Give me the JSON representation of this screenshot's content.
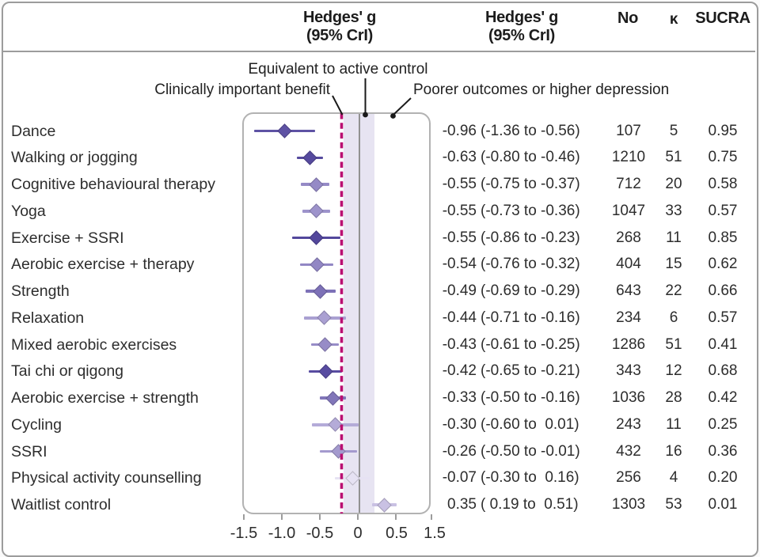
{
  "header": {
    "hedges_plot_line1": "Hedges' g",
    "hedges_plot_line2": "(95% CrI)",
    "hedges_text_line1": "Hedges' g",
    "hedges_text_line2": "(95% CrI)",
    "no_label": "No",
    "kappa_label": "κ",
    "sucra_label": "SUCRA"
  },
  "annotations": {
    "equivalent": "Equivalent to active control",
    "benefit": "Clinically important benefit",
    "poorer": "Poorer outcomes or higher depression"
  },
  "colors": {
    "dashed_line": "#b90e72",
    "equivalence_band": "#e7e4f2",
    "zero_line": "#919191",
    "frame": "#9c9c9c",
    "annotation_line": "#1a1a1a"
  },
  "chart_data": {
    "type": "forest",
    "xlabel": "Hedges' g (95% CrI)",
    "x_tick_values": [
      -1.5,
      -1.0,
      -0.5,
      0,
      0.5,
      1.5
    ],
    "x_tick_labels": [
      "-1.5",
      "-1.0",
      "-0.5",
      "0",
      "0.5",
      "1.5"
    ],
    "equivalence_band_range": [
      -0.2,
      0.2
    ],
    "clinical_benefit_threshold": -0.2,
    "grid": false,
    "rows": [
      {
        "label": "Dance",
        "g": -0.96,
        "lo": -1.36,
        "hi": -0.56,
        "est_text": "-0.96",
        "ci_text": "(-1.36 to -0.56)",
        "no": "107",
        "k": "5",
        "sucra": "0.95",
        "color": "#5e52a4"
      },
      {
        "label": "Walking or jogging",
        "g": -0.63,
        "lo": -0.8,
        "hi": -0.46,
        "est_text": "-0.63",
        "ci_text": "(-0.80 to -0.46)",
        "no": "1210",
        "k": "51",
        "sucra": "0.75",
        "color": "#564a9e"
      },
      {
        "label": "Cognitive behavioural therapy",
        "g": -0.55,
        "lo": -0.75,
        "hi": -0.37,
        "est_text": "-0.55",
        "ci_text": "(-0.75 to -0.37)",
        "no": "712",
        "k": "20",
        "sucra": "0.58",
        "color": "#958ac6"
      },
      {
        "label": "Yoga",
        "g": -0.55,
        "lo": -0.73,
        "hi": -0.36,
        "est_text": "-0.55",
        "ci_text": "(-0.73 to -0.36)",
        "no": "1047",
        "k": "33",
        "sucra": "0.57",
        "color": "#9d93cb"
      },
      {
        "label": "Exercise + SSRI",
        "g": -0.55,
        "lo": -0.86,
        "hi": -0.23,
        "est_text": "-0.55",
        "ci_text": "(-0.86 to -0.23)",
        "no": "268",
        "k": "11",
        "sucra": "0.85",
        "color": "#53479c"
      },
      {
        "label": "Aerobic exercise + therapy",
        "g": -0.54,
        "lo": -0.76,
        "hi": -0.32,
        "est_text": "-0.54",
        "ci_text": "(-0.76 to -0.32)",
        "no": "404",
        "k": "15",
        "sucra": "0.62",
        "color": "#9287c4"
      },
      {
        "label": "Strength",
        "g": -0.49,
        "lo": -0.69,
        "hi": -0.29,
        "est_text": "-0.49",
        "ci_text": "(-0.69 to -0.29)",
        "no": "643",
        "k": "22",
        "sucra": "0.66",
        "color": "#7d71b7"
      },
      {
        "label": "Relaxation",
        "g": -0.44,
        "lo": -0.71,
        "hi": -0.16,
        "est_text": "-0.44",
        "ci_text": "(-0.71 to -0.16)",
        "no": "234",
        "k": "6",
        "sucra": "0.57",
        "color": "#aaa0d2"
      },
      {
        "label": "Mixed aerobic exercises",
        "g": -0.43,
        "lo": -0.61,
        "hi": -0.25,
        "est_text": "-0.43",
        "ci_text": "(-0.61 to -0.25)",
        "no": "1286",
        "k": "51",
        "sucra": "0.41",
        "color": "#978cc7"
      },
      {
        "label": "Tai chi or qigong",
        "g": -0.42,
        "lo": -0.65,
        "hi": -0.21,
        "est_text": "-0.42",
        "ci_text": "(-0.65 to -0.21)",
        "no": "343",
        "k": "12",
        "sucra": "0.68",
        "color": "#584ca1"
      },
      {
        "label": "Aerobic exercise + strength",
        "g": -0.33,
        "lo": -0.5,
        "hi": -0.16,
        "est_text": "-0.33",
        "ci_text": "(-0.50 to -0.16)",
        "no": "1036",
        "k": "28",
        "sucra": "0.42",
        "color": "#8176b9"
      },
      {
        "label": "Cycling",
        "g": -0.3,
        "lo": -0.6,
        "hi": 0.01,
        "est_text": "-0.30",
        "ci_text": "(-0.60 to  0.01)",
        "no": "243",
        "k": "11",
        "sucra": "0.25",
        "color": "#b4abd8"
      },
      {
        "label": "SSRI",
        "g": -0.26,
        "lo": -0.5,
        "hi": -0.01,
        "est_text": "-0.26",
        "ci_text": "(-0.50 to -0.01)",
        "no": "432",
        "k": "16",
        "sucra": "0.36",
        "color": "#a49ace"
      },
      {
        "label": "Physical activity counselling",
        "g": -0.07,
        "lo": -0.3,
        "hi": 0.16,
        "est_text": "-0.07",
        "ci_text": "(-0.30 to  0.16)",
        "no": "256",
        "k": "4",
        "sucra": "0.20",
        "color": "#e6e2f3"
      },
      {
        "label": "Waitlist control",
        "g": 0.35,
        "lo": 0.19,
        "hi": 0.51,
        "est_text": "0.35",
        "ci_text": "( 0.19 to  0.51)",
        "no": "1303",
        "k": "53",
        "sucra": "0.01",
        "color": "#c9c1e3"
      }
    ]
  }
}
